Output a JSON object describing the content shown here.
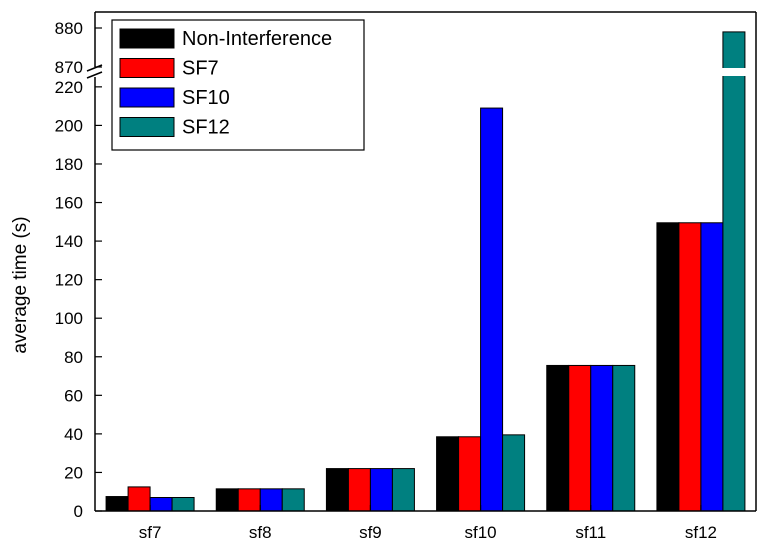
{
  "chart_data": {
    "type": "bar",
    "title": "",
    "xlabel": "",
    "ylabel": "average time (s)",
    "categories": [
      "sf7",
      "sf8",
      "sf9",
      "sf10",
      "sf11",
      "sf12"
    ],
    "series": [
      {
        "name": "Non-Interference",
        "color": "#000000",
        "values": [
          7.5,
          11.5,
          22,
          38.5,
          75.5,
          149.5
        ]
      },
      {
        "name": "SF7",
        "color": "#ff0000",
        "values": [
          12.5,
          11.5,
          22,
          38.5,
          75.5,
          149.5
        ]
      },
      {
        "name": "SF10",
        "color": "#0000ff",
        "values": [
          7,
          11.5,
          22,
          209,
          75.5,
          149.5
        ]
      },
      {
        "name": "SF12",
        "color": "#008080",
        "values": [
          7,
          11.5,
          22,
          39.5,
          75.5,
          879
        ]
      }
    ],
    "yticks_lower": [
      0,
      20,
      40,
      60,
      80,
      100,
      120,
      140,
      160,
      180,
      200,
      220
    ],
    "yticks_upper": [
      870,
      880
    ],
    "ylim_lower": [
      0,
      222
    ],
    "ylim_upper": [
      869.5,
      882
    ],
    "axis_break": true,
    "grid": false,
    "legend_position": "top-left"
  }
}
